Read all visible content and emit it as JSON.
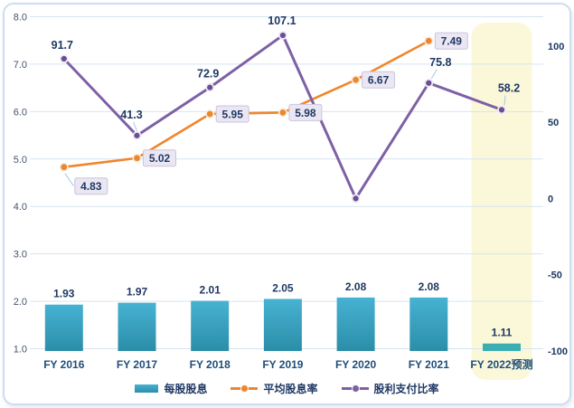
{
  "chart_data": {
    "type": "combo",
    "title": "",
    "categories": [
      "FY 2016",
      "FY 2017",
      "FY 2018",
      "FY 2019",
      "FY 2020",
      "FY 2021",
      "FY 2022预测"
    ],
    "series": [
      {
        "name": "每股股息",
        "type": "bar",
        "axis": "left",
        "color_top": "#47b2d3",
        "color_bottom": "#2b8ea8",
        "forecast_color": "#3baeb2",
        "values": [
          1.93,
          1.97,
          2.01,
          2.05,
          2.08,
          2.08,
          1.11
        ],
        "labels": [
          "1.93",
          "1.97",
          "2.01",
          "2.05",
          "2.08",
          "2.08",
          "1.11"
        ]
      },
      {
        "name": "平均股息率",
        "type": "line",
        "axis": "left",
        "color": "#f0862b",
        "values": [
          4.83,
          5.02,
          5.95,
          5.98,
          6.67,
          7.49,
          null
        ],
        "labels": [
          "4.83",
          "5.02",
          "5.95",
          "5.98",
          "6.67",
          "7.49",
          null
        ]
      },
      {
        "name": "股利支付比率",
        "type": "line",
        "axis": "right",
        "color": "#7d60a5",
        "values": [
          91.7,
          41.3,
          72.9,
          107.1,
          0,
          75.8,
          58.2
        ],
        "labels": [
          "91.7",
          "41.3",
          "72.9",
          "107.1",
          null,
          "75.8",
          "58.2"
        ]
      }
    ],
    "left_axis": {
      "min": 1.0,
      "max": 8.0,
      "ticks": [
        "8.0",
        "7.0",
        "6.0",
        "5.0",
        "4.0",
        "3.0",
        "2.0",
        "1.0"
      ]
    },
    "right_axis": {
      "min": -100,
      "max": 120,
      "ticks": [
        "100",
        "50",
        "0",
        "-50",
        "-100"
      ]
    },
    "grid": true,
    "legend_position": "bottom",
    "highlight_band": {
      "column": "FY 2022预测",
      "column_index": 6,
      "color": "#fbf8da"
    }
  },
  "colors": {
    "data_label_text": "#1f3864",
    "left_axis_text": "#44546a",
    "right_axis_text": "#1f3864",
    "category_text": "#1f4e79",
    "gridline": "#d6e4f0",
    "label_box_bg": "#eae6f2",
    "label_box_border": "#ccc4de",
    "leader_line": "#a8c6e5",
    "panel_border": "#cbddf1"
  }
}
